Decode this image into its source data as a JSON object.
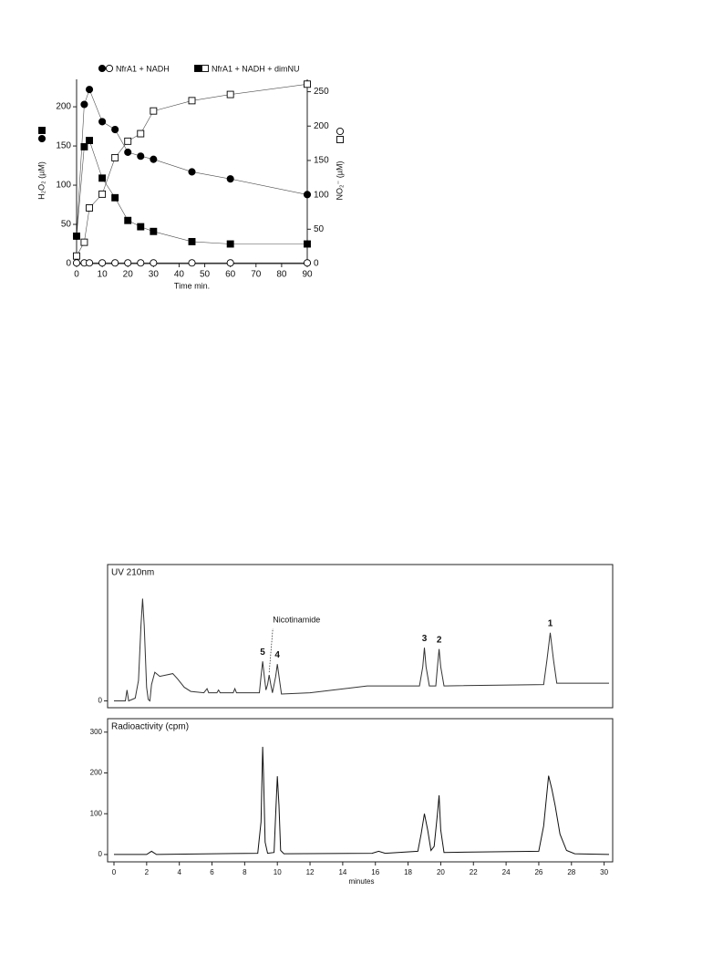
{
  "chart_data": [
    {
      "type": "line",
      "x_label": "Time min.",
      "y_label": "H₂O₂ (µM)",
      "y2_label": "NO₂⁻ (µM)",
      "x": [
        0,
        3,
        5,
        10,
        15,
        20,
        25,
        30,
        45,
        60,
        90
      ],
      "xlim": [
        0,
        90
      ],
      "xticks": [
        0,
        10,
        20,
        30,
        40,
        50,
        60,
        70,
        80,
        90
      ],
      "ylim": [
        0,
        235
      ],
      "yticks": [
        0,
        50,
        100,
        150,
        200
      ],
      "y2lim": [
        0,
        268
      ],
      "y2ticks": [
        0,
        50,
        100,
        150,
        200,
        250
      ],
      "series": [
        {
          "name": "NfrA1 + NADH",
          "color": "#000000",
          "marker": "circle",
          "fill": "filled",
          "values": [
            35,
            203,
            222,
            181,
            171,
            142,
            137,
            133,
            117,
            108,
            88
          ]
        },
        {
          "name": "NfrA1 + NADH + dimNU",
          "color": "#000000",
          "marker": "square",
          "fill": "filled",
          "values": [
            35,
            149,
            157,
            109,
            84,
            55,
            47,
            41,
            28,
            25,
            25
          ]
        },
        {
          "color": "#000000",
          "marker": "circle",
          "fill": "open",
          "axis": "y2",
          "values": [
            1,
            1,
            1,
            1,
            1,
            1,
            1,
            1,
            1,
            1,
            1
          ]
        },
        {
          "color": "#000000",
          "marker": "square",
          "fill": "open",
          "axis": "y2",
          "values": [
            11,
            31,
            81,
            101,
            154,
            178,
            189,
            222,
            237,
            246,
            261
          ]
        }
      ]
    },
    {
      "type": "line",
      "title": "UV 210nm",
      "xlim": [
        0,
        30.3
      ],
      "ylim": [
        -5,
        100
      ],
      "yticks": [
        0
      ],
      "x": [
        0,
        0.7,
        0.8,
        0.9,
        1.3,
        1.5,
        1.65,
        1.75,
        1.85,
        2.0,
        2.1,
        2.2,
        2.3,
        2.5,
        2.8,
        3.2,
        3.6,
        3.9,
        4.3,
        4.7,
        5.5,
        5.7,
        5.8,
        6.3,
        6.4,
        6.5,
        7.3,
        7.4,
        7.5,
        8.9,
        9.0,
        9.1,
        9.2,
        9.3,
        9.4,
        9.5,
        9.6,
        9.7,
        9.9,
        10.0,
        10.1,
        10.25,
        12,
        15.5,
        18.7,
        18.9,
        19.0,
        19.1,
        19.3,
        19.7,
        19.8,
        19.9,
        20.0,
        20.2,
        26.3,
        26.5,
        26.7,
        26.9,
        27.1,
        30.3
      ],
      "series": [
        {
          "color": "#333333",
          "values": [
            0,
            0,
            8,
            0,
            2,
            15,
            55,
            75,
            55,
            10,
            1,
            0,
            12,
            21,
            18,
            19,
            20,
            16,
            10,
            7,
            6,
            9,
            6,
            6,
            8,
            6,
            6,
            9,
            6,
            6,
            18,
            29,
            18,
            8,
            12,
            19,
            12,
            6,
            18,
            27,
            18,
            5,
            6,
            11,
            11,
            25,
            39,
            25,
            11,
            11,
            25,
            38,
            25,
            11,
            12,
            30,
            50,
            30,
            13,
            13
          ]
        }
      ],
      "annotations": [
        {
          "text": "Nicotinamide",
          "x": 9.5
        },
        {
          "text": "5",
          "x": 9.1
        },
        {
          "text": "4",
          "x": 10.0
        },
        {
          "text": "3",
          "x": 19.0
        },
        {
          "text": "2",
          "x": 19.9
        },
        {
          "text": "1",
          "x": 26.7
        }
      ]
    },
    {
      "type": "line",
      "title": "Radioactivity (cpm)",
      "x_label": "minutes",
      "xlim": [
        0,
        30.3
      ],
      "xticks": [
        0,
        2,
        4,
        6,
        8,
        10,
        12,
        14,
        16,
        18,
        20,
        22,
        24,
        26,
        28,
        30
      ],
      "ylim": [
        -18,
        333
      ],
      "yticks": [
        0,
        100,
        200,
        300
      ],
      "x": [
        0,
        2.0,
        2.3,
        2.6,
        8.8,
        9.0,
        9.1,
        9.15,
        9.25,
        9.4,
        9.8,
        9.9,
        10.0,
        10.1,
        10.2,
        10.4,
        15.8,
        16.2,
        16.6,
        18.6,
        18.8,
        19.0,
        19.2,
        19.4,
        19.6,
        19.8,
        19.9,
        20.0,
        20.2,
        26.0,
        26.3,
        26.6,
        26.8,
        27.0,
        27.3,
        27.7,
        28.2,
        30.3
      ],
      "series": [
        {
          "color": "#111111",
          "values": [
            0,
            0,
            8,
            0,
            3,
            80,
            264,
            200,
            30,
            3,
            5,
            100,
            192,
            120,
            10,
            2,
            3,
            8,
            3,
            8,
            50,
            100,
            60,
            10,
            20,
            100,
            145,
            60,
            5,
            8,
            70,
            193,
            160,
            120,
            50,
            10,
            2,
            0
          ]
        }
      ]
    }
  ]
}
